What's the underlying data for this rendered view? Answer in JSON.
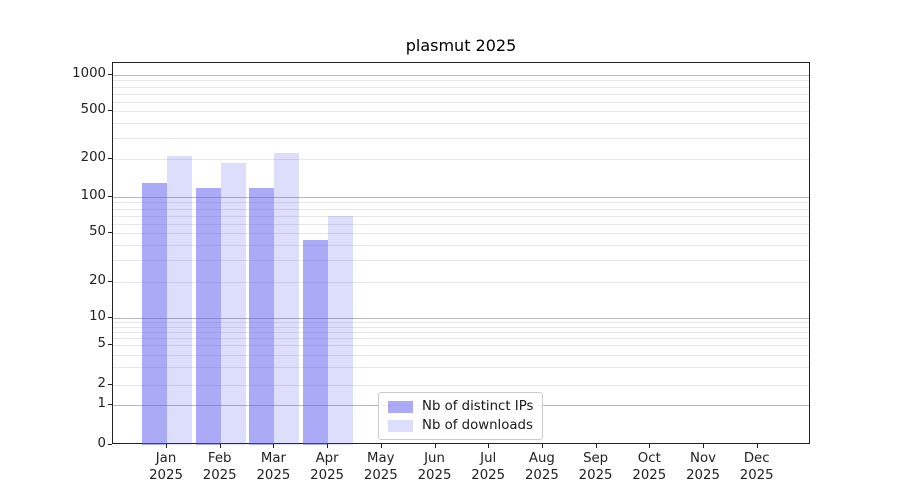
{
  "chart_data": {
    "type": "bar",
    "title": "plasmut 2025",
    "categories": [
      "Jan",
      "Feb",
      "Mar",
      "Apr",
      "May",
      "Jun",
      "Jul",
      "Aug",
      "Sep",
      "Oct",
      "Nov",
      "Dec"
    ],
    "x_year_label": "2025",
    "series": [
      {
        "name": "Nb of distinct IPs",
        "color": "rgba(85,85,238,0.5)",
        "values": [
          130,
          117,
          117,
          44,
          0,
          0,
          0,
          0,
          0,
          0,
          0,
          0
        ]
      },
      {
        "name": "Nb of downloads",
        "color": "rgba(85,85,238,0.2)",
        "values": [
          210,
          185,
          225,
          70,
          0,
          0,
          0,
          0,
          0,
          0,
          0,
          0
        ]
      }
    ],
    "xlabel": "",
    "ylabel": "",
    "yaxis": {
      "scale": "log-like (symlog)",
      "ticks": [
        0,
        1,
        2,
        5,
        10,
        20,
        50,
        100,
        200,
        500,
        1000
      ],
      "range": [
        0,
        1300
      ],
      "minor_gridlines": true
    },
    "grid": "on",
    "legend": {
      "position": "lower-center",
      "entries": [
        "Nb of distinct IPs",
        "Nb of downloads"
      ]
    },
    "colors": {
      "bar_base": "#5555ee",
      "grid_minor": "#e7e7e7",
      "grid_major": "#b8b8b8",
      "axis": "#222222",
      "background": "#ffffff"
    }
  }
}
